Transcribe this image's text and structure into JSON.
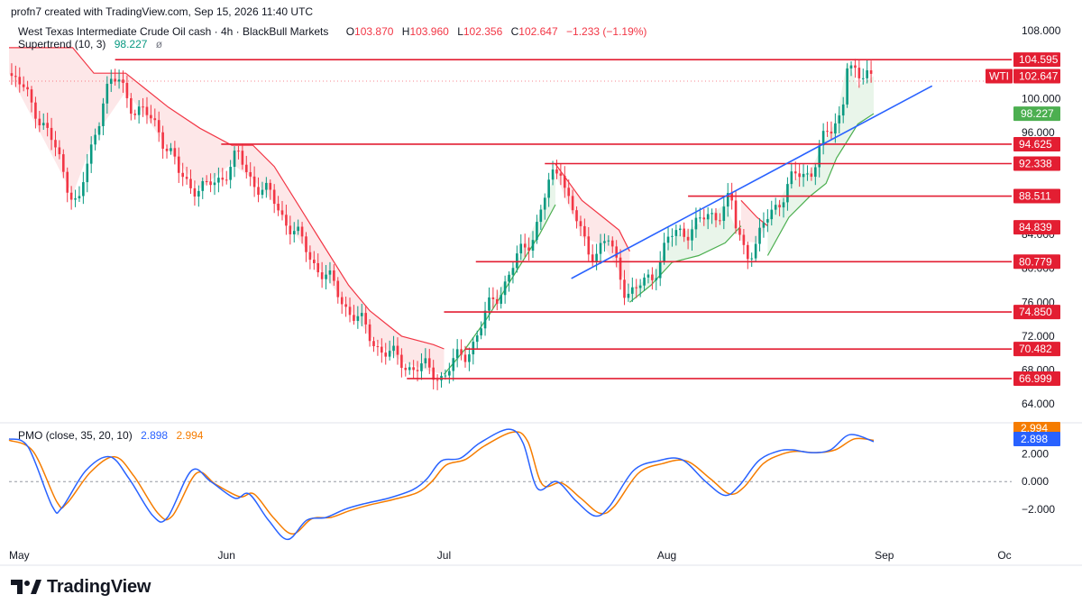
{
  "header": {
    "created": "profn7 created with TradingView.com, Sep 15, 2026 11:40 UTC",
    "symbol": "West Texas Intermediate Crude Oil cash · 4h · BlackBull Markets",
    "o_label": "O",
    "o_val": "103.870",
    "h_label": "H",
    "h_val": "103.960",
    "l_label": "L",
    "l_val": "102.356",
    "c_label": "C",
    "c_val": "102.647",
    "change": "−1.233 (−1.19%)",
    "supertrend_label": "Supertrend (10, 3)",
    "supertrend_val": "98.227",
    "pmo_label": "PMO (close, 35, 20, 10)",
    "pmo_val": "2.898",
    "pmo_signal_val": "2.994"
  },
  "brand": {
    "name": "TradingView"
  },
  "colors": {
    "up": "#089981",
    "down": "#f23645",
    "level": "#e31e32",
    "trend": "#2962ff",
    "st_up": "#4caf50",
    "st_down": "#f23645",
    "pmo": "#2962ff",
    "pmo_signal": "#f57c00"
  },
  "chart_data": [
    {
      "type": "candlestick",
      "title": "West Texas Intermediate Crude Oil cash",
      "timeframe": "4h",
      "x_ticks": [
        "May",
        "Jun",
        "Jul",
        "Aug",
        "Sep",
        "Oc"
      ],
      "y_ticks": [
        "108.000",
        "100.000",
        "96.000",
        "84.000",
        "80.000",
        "76.000",
        "72.000",
        "68.000",
        "64.000"
      ],
      "ylim": [
        62,
        109.5
      ],
      "last_price": 102.647,
      "last_label": "WTI",
      "price_path": [
        [
          0,
          103
        ],
        [
          5,
          99
        ],
        [
          10,
          92
        ],
        [
          13,
          87
        ],
        [
          18,
          101
        ],
        [
          21,
          102
        ],
        [
          24,
          98.5
        ],
        [
          28,
          97
        ],
        [
          32,
          91
        ],
        [
          37,
          89
        ],
        [
          43,
          93
        ],
        [
          46,
          90.5
        ],
        [
          51,
          87
        ],
        [
          55,
          83
        ],
        [
          62,
          77
        ],
        [
          68,
          72
        ],
        [
          72,
          69.5
        ],
        [
          78,
          68
        ],
        [
          82,
          67.5
        ],
        [
          86,
          70
        ],
        [
          89,
          73
        ],
        [
          91,
          76
        ],
        [
          95,
          80
        ],
        [
          99,
          84.5
        ],
        [
          102,
          90
        ],
        [
          104,
          92.3
        ],
        [
          106,
          87
        ],
        [
          109,
          82
        ],
        [
          113,
          83
        ],
        [
          116,
          78
        ],
        [
          118,
          77
        ],
        [
          121,
          79
        ],
        [
          124,
          83
        ],
        [
          127,
          84.5
        ],
        [
          131,
          85.5
        ],
        [
          134,
          87
        ],
        [
          136,
          88.2
        ],
        [
          137,
          84.5
        ],
        [
          139,
          82
        ],
        [
          141,
          83
        ],
        [
          144,
          87
        ],
        [
          147,
          90
        ],
        [
          151,
          91.5
        ],
        [
          153,
          94.5
        ],
        [
          155,
          96
        ],
        [
          157,
          99
        ],
        [
          158,
          104.5
        ],
        [
          160,
          101.5
        ],
        [
          162,
          103.8
        ],
        [
          163,
          102.65
        ]
      ],
      "levels": [
        {
          "value": 104.595,
          "label": "104.595",
          "from_x": 20
        },
        {
          "value": 94.625,
          "label": "94.625",
          "from_x": 40
        },
        {
          "value": 92.338,
          "label": "92.338",
          "from_x": 101
        },
        {
          "value": 88.511,
          "label": "88.511",
          "from_x": 128
        },
        {
          "value": 84.839,
          "label": "84.839",
          "from_x": null
        },
        {
          "value": 80.779,
          "label": "80.779",
          "from_x": 88
        },
        {
          "value": 74.85,
          "label": "74.850",
          "from_x": 82
        },
        {
          "value": 70.482,
          "label": "70.482",
          "from_x": 86
        },
        {
          "value": 66.999,
          "label": "66.999",
          "from_x": 75
        }
      ],
      "trendline": {
        "from": [
          106,
          78.8
        ],
        "to": [
          174,
          101.5
        ]
      },
      "supertrend": {
        "value": 98.227,
        "segments": [
          {
            "dir": "down",
            "points": [
              [
                0,
                106
              ],
              [
                12,
                106
              ],
              [
                16,
                103
              ],
              [
                22,
                103
              ],
              [
                26,
                101
              ],
              [
                30,
                99
              ],
              [
                36,
                96.5
              ],
              [
                42,
                94.5
              ],
              [
                46,
                94.5
              ],
              [
                50,
                92
              ],
              [
                54,
                88
              ],
              [
                58,
                84
              ],
              [
                64,
                78
              ],
              [
                68,
                75
              ],
              [
                74,
                72
              ],
              [
                80,
                71
              ],
              [
                82,
                70.5
              ]
            ]
          },
          {
            "dir": "up",
            "points": [
              [
                82,
                67.5
              ],
              [
                86,
                70.5
              ],
              [
                90,
                74
              ],
              [
                92,
                76
              ],
              [
                96,
                80
              ],
              [
                100,
                84
              ],
              [
                103,
                87.5
              ]
            ]
          },
          {
            "dir": "down",
            "points": [
              [
                103,
                92.3
              ],
              [
                108,
                88
              ],
              [
                112,
                86
              ],
              [
                115,
                84.5
              ],
              [
                117,
                82
              ]
            ]
          },
          {
            "dir": "up",
            "points": [
              [
                117,
                76
              ],
              [
                121,
                78
              ],
              [
                125,
                80.7
              ],
              [
                130,
                81.5
              ],
              [
                135,
                83
              ],
              [
                138,
                85
              ]
            ]
          },
          {
            "dir": "down",
            "points": [
              [
                138,
                88
              ],
              [
                141,
                86
              ],
              [
                143,
                85
              ]
            ]
          },
          {
            "dir": "up",
            "points": [
              [
                143,
                81.5
              ],
              [
                147,
                86
              ],
              [
                151,
                88.5
              ],
              [
                154,
                90
              ],
              [
                156,
                93
              ],
              [
                158,
                95
              ],
              [
                160,
                97
              ],
              [
                163,
                98.227
              ]
            ]
          }
        ]
      }
    },
    {
      "type": "line",
      "title": "PMO (close, 35, 20, 10)",
      "y_ticks": [
        "2.000",
        "0.000",
        "−2.000"
      ],
      "ylim": [
        -4.5,
        4.2
      ],
      "series": [
        {
          "name": "PMO",
          "values": [
            [
              0,
              3.1
            ],
            [
              4,
              2.5
            ],
            [
              9,
              -1.8
            ],
            [
              11,
              -1.9
            ],
            [
              16,
              0.8
            ],
            [
              21,
              1.8
            ],
            [
              25,
              0.2
            ],
            [
              30,
              -2.5
            ],
            [
              33,
              -2.6
            ],
            [
              38,
              0.8
            ],
            [
              42,
              0
            ],
            [
              47,
              -1.2
            ],
            [
              50,
              -0.9
            ],
            [
              54,
              -2.8
            ],
            [
              58,
              -4.2
            ],
            [
              62,
              -2.8
            ],
            [
              66,
              -2.6
            ],
            [
              70,
              -2
            ],
            [
              74,
              -1.6
            ],
            [
              79,
              -1.2
            ],
            [
              84,
              -0.6
            ],
            [
              87,
              0.2
            ],
            [
              90,
              1.5
            ],
            [
              94,
              1.7
            ],
            [
              98,
              2.8
            ],
            [
              104,
              3.8
            ],
            [
              107,
              2.8
            ],
            [
              110,
              -0.5
            ],
            [
              114,
              0
            ],
            [
              118,
              -1.4
            ],
            [
              122,
              -2.5
            ],
            [
              125,
              -1.8
            ],
            [
              130,
              0.8
            ],
            [
              135,
              1.5
            ],
            [
              140,
              1.6
            ],
            [
              145,
              0
            ],
            [
              149,
              -1
            ],
            [
              152,
              -0.3
            ],
            [
              156,
              1.5
            ],
            [
              160,
              2.2
            ],
            [
              163,
              2.3
            ],
            [
              167,
              2.1
            ],
            [
              171,
              2.3
            ],
            [
              175,
              3.4
            ],
            [
              180,
              2.898
            ]
          ]
        },
        {
          "name": "Signal",
          "values": [
            [
              0,
              3
            ],
            [
              5,
              2.2
            ],
            [
              10,
              -1.5
            ],
            [
              12,
              -1.6
            ],
            [
              17,
              0.7
            ],
            [
              22,
              1.8
            ],
            [
              26,
              0.4
            ],
            [
              31,
              -2.3
            ],
            [
              34,
              -2.5
            ],
            [
              39,
              0.6
            ],
            [
              43,
              -0.2
            ],
            [
              48,
              -1.1
            ],
            [
              51,
              -0.9
            ],
            [
              55,
              -2.6
            ],
            [
              59,
              -3.8
            ],
            [
              63,
              -2.7
            ],
            [
              67,
              -2.6
            ],
            [
              71,
              -2.1
            ],
            [
              75,
              -1.7
            ],
            [
              80,
              -1.3
            ],
            [
              85,
              -0.8
            ],
            [
              88,
              0
            ],
            [
              91,
              1.2
            ],
            [
              95,
              1.6
            ],
            [
              99,
              2.6
            ],
            [
              105,
              3.6
            ],
            [
              108,
              2.9
            ],
            [
              111,
              -0.2
            ],
            [
              115,
              -0.1
            ],
            [
              119,
              -1.2
            ],
            [
              123,
              -2.3
            ],
            [
              126,
              -1.8
            ],
            [
              131,
              0.6
            ],
            [
              136,
              1.3
            ],
            [
              141,
              1.5
            ],
            [
              146,
              0.2
            ],
            [
              150,
              -0.9
            ],
            [
              153,
              -0.4
            ],
            [
              157,
              1.3
            ],
            [
              161,
              2
            ],
            [
              164,
              2.2
            ],
            [
              168,
              2.1
            ],
            [
              172,
              2.3
            ],
            [
              176,
              3.1
            ],
            [
              180,
              2.994
            ]
          ]
        }
      ]
    }
  ]
}
